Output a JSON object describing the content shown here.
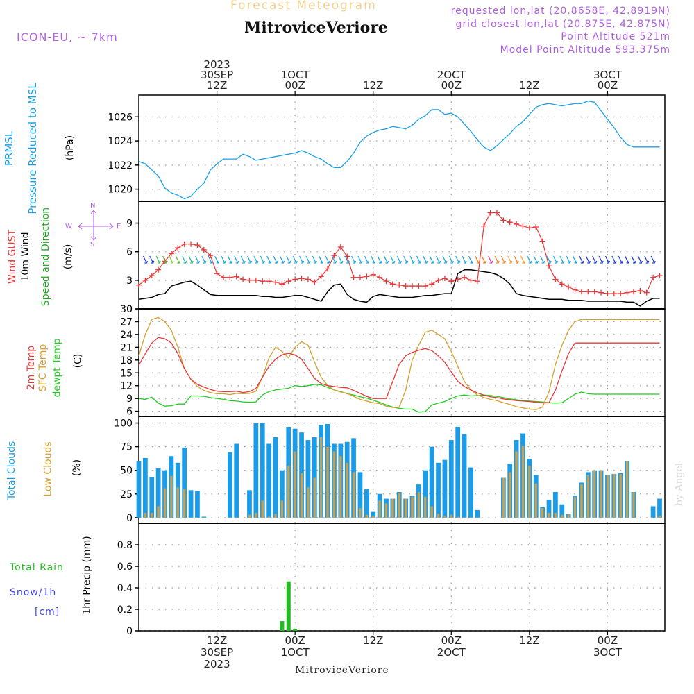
{
  "header": {
    "subtitle": "Forecast Meteogram",
    "location": "MitroviceVeriore",
    "model": "ICON-EU, ~ 7km",
    "requested": "requested lon,lat (20.8658E, 42.8919N)",
    "closest": "grid closest lon,lat (20.875E, 42.875N)",
    "point_alt": "Point Altitude 521m",
    "model_alt": "Model Point Altitude 593.375m",
    "credit": "by Angel"
  },
  "time_axis": {
    "top_ticks": [
      {
        "t": 12,
        "lines": [
          "2023",
          "30SEP",
          "12Z"
        ]
      },
      {
        "t": 24,
        "lines": [
          "1OCT",
          "00Z"
        ]
      },
      {
        "t": 36,
        "lines": [
          "12Z"
        ]
      },
      {
        "t": 48,
        "lines": [
          "2OCT",
          "00Z"
        ]
      },
      {
        "t": 60,
        "lines": [
          "12Z"
        ]
      },
      {
        "t": 72,
        "lines": [
          "3OCT",
          "00Z"
        ]
      }
    ],
    "bottom_ticks": [
      {
        "t": 12,
        "lines": [
          "12Z",
          "30SEP",
          "2023"
        ]
      },
      {
        "t": 24,
        "lines": [
          "00Z",
          "1OCT"
        ]
      },
      {
        "t": 36,
        "lines": [
          "12Z"
        ]
      },
      {
        "t": 48,
        "lines": [
          "00Z",
          "2OCT"
        ]
      },
      {
        "t": 60,
        "lines": [
          "12Z"
        ]
      },
      {
        "t": 72,
        "lines": [
          "00Z",
          "3OCT"
        ]
      }
    ],
    "bottom_label": "MitroviceVeriore"
  },
  "labels": {
    "p1": [
      "PRMSL",
      "Pressure Reduced to MSL",
      "(hPa)"
    ],
    "p2": [
      "Wind GUST",
      "10m Wind",
      "Speed and Direction",
      "(m/s)"
    ],
    "p3": [
      "2m Temp",
      "SFC Temp",
      "dewpt Temp",
      "(C)"
    ],
    "p4": [
      "Total Clouds",
      "Low Clouds",
      "(%)"
    ],
    "p5_left": [
      "Total Rain",
      "Snow/1h",
      "[cm]"
    ],
    "p5_axis": "1hr Precip (mm)",
    "compass": {
      "n": "N",
      "s": "S",
      "w": "W",
      "e": "E"
    }
  },
  "colors": {
    "pressure": "#1aa0e8",
    "gust": "#e83838",
    "wind": "#000000",
    "t2m": "#e83838",
    "sfc": "#d4a030",
    "dew": "#22cc22",
    "total_clouds": "#1a9ce8",
    "low_clouds": "#c8a050",
    "rain": "#22bb22",
    "snow": "#4444ee",
    "purple": "#b060e0"
  },
  "chart_data": [
    {
      "type": "line",
      "title": "PRMSL Pressure Reduced to MSL",
      "ylabel": "(hPa)",
      "ylim": [
        1019,
        1027.8
      ],
      "yticks": [
        1020,
        1022,
        1024,
        1026
      ],
      "x_hours": [
        0,
        1,
        2,
        3,
        4,
        5,
        6,
        7,
        8,
        9,
        10,
        11,
        12,
        13,
        14,
        15,
        16,
        17,
        18,
        19,
        20,
        21,
        22,
        23,
        24,
        25,
        26,
        27,
        28,
        29,
        30,
        31,
        32,
        33,
        34,
        35,
        36,
        37,
        38,
        39,
        40,
        41,
        42,
        43,
        44,
        45,
        46,
        47,
        48,
        49,
        50,
        51,
        52,
        53,
        54,
        55,
        56,
        57,
        58,
        59,
        60,
        61,
        62,
        63,
        64,
        65,
        66,
        67,
        68,
        69,
        70,
        71,
        72,
        73,
        74,
        75,
        76,
        77,
        78,
        79,
        80
      ],
      "series": [
        {
          "name": "PRMSL",
          "values": [
            1022.3,
            1022.1,
            1021.6,
            1021.1,
            1020.1,
            1019.7,
            1019.5,
            1019.2,
            1019.4,
            1020.0,
            1020.5,
            1021.6,
            1022.1,
            1022.5,
            1022.5,
            1022.5,
            1022.9,
            1022.7,
            1022.4,
            1022.5,
            1022.6,
            1022.7,
            1022.8,
            1022.9,
            1023.0,
            1023.2,
            1023.0,
            1022.7,
            1022.5,
            1022.1,
            1021.8,
            1021.8,
            1022.3,
            1023.0,
            1023.9,
            1024.4,
            1024.7,
            1024.9,
            1025.0,
            1025.2,
            1025.1,
            1025.0,
            1025.3,
            1025.8,
            1026.1,
            1026.6,
            1026.6,
            1026.2,
            1026.3,
            1026.0,
            1025.4,
            1024.8,
            1024.1,
            1023.5,
            1023.2,
            1023.6,
            1024.1,
            1024.6,
            1025.2,
            1025.6,
            1026.2,
            1026.8,
            1027.0,
            1027.1,
            1027.0,
            1026.9,
            1027.0,
            1027.1,
            1027.1,
            1027.3,
            1027.2,
            1026.5,
            1025.8,
            1025.1,
            1024.3,
            1023.7,
            1023.5,
            1023.5,
            1023.5,
            1023.5,
            1023.5
          ]
        }
      ]
    },
    {
      "type": "line",
      "title": "Wind GUST / 10m Wind Speed and Direction",
      "ylabel": "(m/s)",
      "ylim": [
        0,
        11.3
      ],
      "yticks": [
        0,
        3,
        6,
        9
      ],
      "x_hours": [
        0,
        1,
        2,
        3,
        4,
        5,
        6,
        7,
        8,
        9,
        10,
        11,
        12,
        13,
        14,
        15,
        16,
        17,
        18,
        19,
        20,
        21,
        22,
        23,
        24,
        25,
        26,
        27,
        28,
        29,
        30,
        31,
        32,
        33,
        34,
        35,
        36,
        37,
        38,
        39,
        40,
        41,
        42,
        43,
        44,
        45,
        46,
        47,
        48,
        49,
        50,
        51,
        52,
        53,
        54,
        55,
        56,
        57,
        58,
        59,
        60,
        61,
        62,
        63,
        64,
        65,
        66,
        67,
        68,
        69,
        70,
        71,
        72,
        73,
        74,
        75,
        76,
        77,
        78,
        79,
        80
      ],
      "series": [
        {
          "name": "Wind GUST",
          "values": [
            2.5,
            3.0,
            3.5,
            4.1,
            5.0,
            5.8,
            6.4,
            6.8,
            6.8,
            6.7,
            6.2,
            5.6,
            3.7,
            3.3,
            3.3,
            3.4,
            3.1,
            3.0,
            3.0,
            2.9,
            2.9,
            2.8,
            2.6,
            2.9,
            3.1,
            3.2,
            3.1,
            2.8,
            3.4,
            4.2,
            5.6,
            6.5,
            5.5,
            3.3,
            3.3,
            3.4,
            3.6,
            3.3,
            2.9,
            2.6,
            2.5,
            2.4,
            2.4,
            2.4,
            2.4,
            2.6,
            3.0,
            3.2,
            2.9,
            3.1,
            3.3,
            3.0,
            2.9,
            8.7,
            10.1,
            10.1,
            9.3,
            9.1,
            8.9,
            8.7,
            8.5,
            8.6,
            7.1,
            4.5,
            3.1,
            2.6,
            2.3,
            2.0,
            1.8,
            1.8,
            1.8,
            1.7,
            1.6,
            1.6,
            1.6,
            1.7,
            1.8,
            1.9,
            1.7,
            3.3,
            3.5
          ]
        },
        {
          "name": "10m Wind",
          "values": [
            1.0,
            1.1,
            1.2,
            1.5,
            1.6,
            2.4,
            2.6,
            2.8,
            2.9,
            2.5,
            2.0,
            1.5,
            1.4,
            1.4,
            1.4,
            1.4,
            1.4,
            1.4,
            1.4,
            1.3,
            1.3,
            1.2,
            1.2,
            1.3,
            1.4,
            1.4,
            1.2,
            1.0,
            0.8,
            1.8,
            2.5,
            2.6,
            1.5,
            1.0,
            0.8,
            0.7,
            1.3,
            1.5,
            1.4,
            1.3,
            1.2,
            1.2,
            1.2,
            1.3,
            1.4,
            1.4,
            1.5,
            1.6,
            1.6,
            3.7,
            4.1,
            4.1,
            4.0,
            3.9,
            3.8,
            3.6,
            3.2,
            2.6,
            1.6,
            1.4,
            1.3,
            1.2,
            1.1,
            1.0,
            1.0,
            1.0,
            0.9,
            0.9,
            0.9,
            0.8,
            0.8,
            0.8,
            0.8,
            0.8,
            0.8,
            0.7,
            0.7,
            0.3,
            0.8,
            1.1,
            1.1
          ]
        }
      ]
    },
    {
      "type": "line",
      "title": "2m Temp / SFC Temp / dewpt Temp",
      "ylabel": "(C)",
      "ylim": [
        4.8,
        30
      ],
      "yticks": [
        6,
        9,
        12,
        15,
        18,
        21,
        24,
        27,
        30
      ],
      "x_hours": [
        0,
        1,
        2,
        3,
        4,
        5,
        6,
        7,
        8,
        9,
        10,
        11,
        12,
        13,
        14,
        15,
        16,
        17,
        18,
        19,
        20,
        21,
        22,
        23,
        24,
        25,
        26,
        27,
        28,
        29,
        30,
        31,
        32,
        33,
        34,
        35,
        36,
        37,
        38,
        39,
        40,
        41,
        42,
        43,
        44,
        45,
        46,
        47,
        48,
        49,
        50,
        51,
        52,
        53,
        54,
        55,
        56,
        57,
        58,
        59,
        60,
        61,
        62,
        63,
        64,
        65,
        66,
        67,
        68,
        69,
        70,
        71,
        72,
        73,
        74,
        75,
        76,
        77,
        78,
        79,
        80
      ],
      "series": [
        {
          "name": "2m Temp",
          "values": [
            16.8,
            19.5,
            22.0,
            23.3,
            23.0,
            22.0,
            19.5,
            16.0,
            13.5,
            12.3,
            11.7,
            11.1,
            10.7,
            10.6,
            10.6,
            10.7,
            10.4,
            10.6,
            11.4,
            14.0,
            16.5,
            18.2,
            19.2,
            19.6,
            19.2,
            18.2,
            16.0,
            13.7,
            12.5,
            12.0,
            11.8,
            11.6,
            11.5,
            10.9,
            10.2,
            9.5,
            9.0,
            9.0,
            9.0,
            13.0,
            17.0,
            19.0,
            19.8,
            20.3,
            20.7,
            20.2,
            19.0,
            17.5,
            15.2,
            13.0,
            11.8,
            11.0,
            10.3,
            9.8,
            9.4,
            9.2,
            8.9,
            8.7,
            8.5,
            8.4,
            8.3,
            8.1,
            8.0,
            8.0,
            11.0,
            15.5,
            19.5,
            22.0,
            22.0,
            22.0,
            22.0,
            22.0,
            22.0,
            22.0,
            22.0,
            22.0,
            22.0,
            22.0,
            22.0,
            22.0,
            22.0
          ]
        },
        {
          "name": "SFC Temp",
          "values": [
            19.0,
            24.0,
            27.5,
            28.0,
            27.0,
            25.0,
            21.0,
            16.0,
            13.5,
            11.8,
            10.9,
            10.4,
            10.1,
            10.1,
            9.9,
            10.2,
            10.1,
            10.2,
            10.7,
            14.0,
            18.5,
            21.0,
            20.0,
            18.5,
            21.0,
            22.3,
            21.5,
            17.5,
            14.0,
            12.0,
            11.0,
            10.5,
            10.2,
            9.5,
            8.8,
            8.4,
            8.0,
            7.8,
            7.2,
            6.9,
            7.0,
            11.0,
            18.0,
            21.5,
            24.5,
            25.0,
            24.0,
            23.0,
            20.0,
            16.5,
            13.0,
            11.0,
            9.8,
            9.2,
            8.8,
            8.5,
            8.0,
            7.6,
            7.1,
            6.8,
            6.5,
            6.4,
            7.0,
            10.5,
            17.0,
            21.5,
            25.0,
            27.0,
            27.5,
            27.5,
            27.5,
            27.5,
            27.5,
            27.5,
            27.5,
            27.5,
            27.5,
            27.5,
            27.5,
            27.5,
            27.5
          ]
        },
        {
          "name": "dewpt Temp",
          "values": [
            9.0,
            8.8,
            9.3,
            7.9,
            7.2,
            7.3,
            7.7,
            7.7,
            9.6,
            9.6,
            9.5,
            9.2,
            9.0,
            8.8,
            8.5,
            8.4,
            8.2,
            8.1,
            8.2,
            9.8,
            10.6,
            11.0,
            11.2,
            11.4,
            12.0,
            11.8,
            12.0,
            12.3,
            12.2,
            11.6,
            11.0,
            10.6,
            10.1,
            9.8,
            9.4,
            9.1,
            8.6,
            8.1,
            7.5,
            7.0,
            6.7,
            6.5,
            6.5,
            5.8,
            5.9,
            7.5,
            7.9,
            8.3,
            9.0,
            9.6,
            9.8,
            9.6,
            9.7,
            9.8,
            9.7,
            9.5,
            9.2,
            8.9,
            8.7,
            8.5,
            8.4,
            8.3,
            8.2,
            8.0,
            7.9,
            8.0,
            9.0,
            10.0,
            10.5,
            10.1,
            10.0,
            10.0,
            10.0,
            10.0,
            10.0,
            10.0,
            10.0,
            10.0,
            10.0,
            10.0,
            10.0
          ]
        }
      ]
    },
    {
      "type": "bar",
      "title": "Total Clouds / Low Clouds",
      "ylabel": "(%)",
      "ylim": [
        -6,
        107
      ],
      "yticks": [
        0,
        25,
        50,
        75,
        100
      ],
      "x_hours": [
        0,
        1,
        2,
        3,
        4,
        5,
        6,
        7,
        8,
        9,
        10,
        11,
        12,
        13,
        14,
        15,
        16,
        17,
        18,
        19,
        20,
        21,
        22,
        23,
        24,
        25,
        26,
        27,
        28,
        29,
        30,
        31,
        32,
        33,
        34,
        35,
        36,
        37,
        38,
        39,
        40,
        41,
        42,
        43,
        44,
        45,
        46,
        47,
        48,
        49,
        50,
        51,
        52,
        53,
        54,
        55,
        56,
        57,
        58,
        59,
        60,
        61,
        62,
        63,
        64,
        65,
        66,
        67,
        68,
        69,
        70,
        71,
        72,
        73,
        74,
        75,
        76,
        77,
        78,
        79,
        80
      ],
      "series": [
        {
          "name": "Total Clouds",
          "values": [
            60,
            63,
            43,
            52,
            50,
            65,
            58,
            74,
            29,
            28,
            1,
            0,
            0,
            0,
            69,
            78,
            0,
            29,
            100,
            100,
            78,
            85,
            50,
            96,
            94,
            90,
            82,
            85,
            98,
            99,
            78,
            78,
            80,
            84,
            48,
            30,
            6,
            25,
            20,
            20,
            27,
            20,
            23,
            35,
            50,
            75,
            58,
            61,
            82,
            96,
            88,
            53,
            8,
            0,
            0,
            0,
            42,
            57,
            82,
            89,
            62,
            45,
            11,
            19,
            27,
            14,
            4,
            23,
            37,
            48,
            50,
            50,
            45,
            46,
            47,
            60,
            27,
            0,
            0,
            12,
            20
          ]
        },
        {
          "name": "Low Clouds",
          "values": [
            0,
            5,
            5,
            12,
            31,
            44,
            32,
            30,
            0,
            0,
            0,
            0,
            0,
            0,
            0,
            0,
            0,
            3,
            5,
            18,
            1,
            4,
            18,
            55,
            70,
            47,
            32,
            42,
            85,
            75,
            70,
            65,
            58,
            48,
            10,
            3,
            2,
            18,
            15,
            20,
            26,
            20,
            22,
            27,
            22,
            12,
            4,
            2,
            3,
            1,
            0,
            0,
            0,
            0,
            0,
            0,
            42,
            48,
            70,
            76,
            55,
            36,
            10,
            5,
            5,
            3,
            4,
            22,
            35,
            45,
            50,
            50,
            45,
            46,
            46,
            60,
            27,
            0,
            0,
            0,
            2
          ]
        }
      ]
    },
    {
      "type": "bar",
      "title": "Total Rain / Snow 1h",
      "ylabel": "1hr Precip (mm)",
      "ylim": [
        0,
        1.0
      ],
      "yticks": [
        0,
        0.2,
        0.4,
        0.6,
        0.8
      ],
      "x_hours": [
        22,
        23,
        24
      ],
      "series": [
        {
          "name": "Total Rain",
          "values": [
            0.09,
            0.46,
            0.02
          ]
        }
      ]
    }
  ]
}
